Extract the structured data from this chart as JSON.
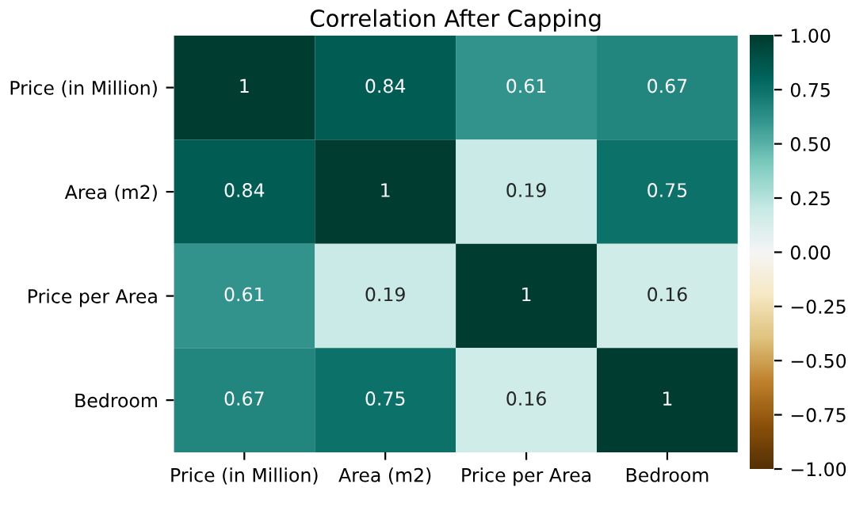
{
  "chart_data": {
    "type": "heatmap",
    "title": "Correlation After Capping",
    "categories": [
      "Price (in Million)",
      "Area (m2)",
      "Price per Area",
      "Bedroom"
    ],
    "y_categories": [
      "Price (in Million)",
      "Area (m2)",
      "Price per Area",
      "Bedroom"
    ],
    "cells": [
      [
        1,
        0.84,
        0.61,
        0.67
      ],
      [
        0.84,
        1,
        0.19,
        0.75
      ],
      [
        0.61,
        0.19,
        1,
        0.16
      ],
      [
        0.67,
        0.75,
        0.16,
        1
      ]
    ],
    "data_labels": true,
    "clim": [
      -1,
      1
    ],
    "cticks": [
      {
        "value": -1,
        "label": "−1.00"
      },
      {
        "value": -0.75,
        "label": "−0.75"
      },
      {
        "value": -0.5,
        "label": "−0.50"
      },
      {
        "value": -0.25,
        "label": "−0.25"
      },
      {
        "value": 0,
        "label": "0.00"
      },
      {
        "value": 0.25,
        "label": "0.25"
      },
      {
        "value": 0.5,
        "label": "0.50"
      },
      {
        "value": 0.75,
        "label": "0.75"
      },
      {
        "value": 1,
        "label": "1.00"
      }
    ]
  }
}
